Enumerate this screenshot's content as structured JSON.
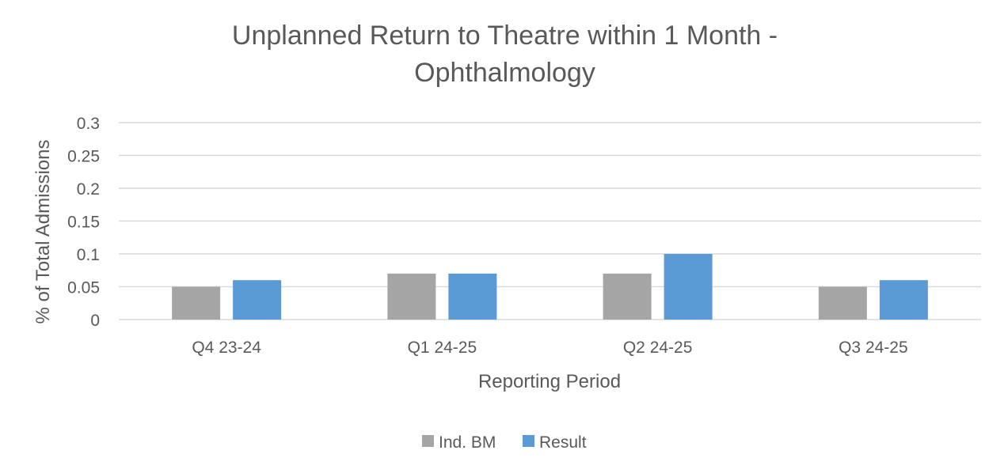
{
  "chart_data": {
    "type": "bar",
    "title_lines": [
      "Unplanned Return to Theatre within 1 Month  -",
      "Ophthalmology"
    ],
    "xlabel": "Reporting Period",
    "ylabel": "% of Total Admissions",
    "categories": [
      "Q4 23-24",
      "Q1 24-25",
      "Q2 24-25",
      "Q3 24-25"
    ],
    "series": [
      {
        "name": "Ind. BM",
        "values": [
          0.05,
          0.07,
          0.07,
          0.05
        ],
        "color": "#a5a5a5"
      },
      {
        "name": "Result",
        "values": [
          0.06,
          0.07,
          0.1,
          0.06
        ],
        "color": "#5b9bd5"
      }
    ],
    "ylim": [
      0,
      0.3
    ],
    "yticks": [
      "0",
      "0.05",
      "0.1",
      "0.15",
      "0.2",
      "0.25",
      "0.3"
    ],
    "grid": true,
    "legend_position": "bottom",
    "gridline_color": "#d9d9d9"
  }
}
